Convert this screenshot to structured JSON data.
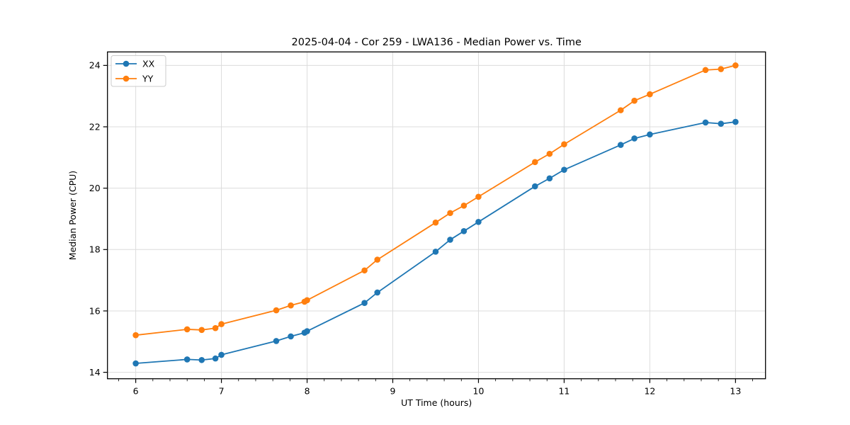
{
  "figure": {
    "background": "#ffffff",
    "title": "2025-04-04 - Cor 259 - LWA136 - Median Power vs. Time"
  },
  "chart_data": {
    "type": "line",
    "title": "2025-04-04 - Cor 259 - LWA136 - Median Power vs. Time",
    "xlabel": "UT Time (hours)",
    "ylabel": "Median Power (CPU)",
    "x": [
      6.0,
      6.6,
      6.77,
      6.93,
      7.0,
      7.64,
      7.81,
      7.97,
      8.0,
      8.67,
      8.82,
      9.5,
      9.67,
      9.83,
      10.0,
      10.66,
      10.83,
      11.0,
      11.66,
      11.82,
      12.0,
      12.65,
      12.83,
      13.0
    ],
    "series": [
      {
        "name": "XX",
        "color": "#1f77b4",
        "values": [
          14.29,
          14.42,
          14.4,
          14.45,
          14.57,
          15.02,
          15.17,
          15.29,
          15.34,
          16.26,
          16.6,
          17.93,
          18.32,
          18.6,
          18.9,
          20.06,
          20.32,
          20.6,
          21.41,
          21.62,
          21.75,
          22.14,
          22.1,
          22.16
        ]
      },
      {
        "name": "YY",
        "color": "#ff7f0e",
        "values": [
          15.21,
          15.4,
          15.38,
          15.44,
          15.57,
          16.02,
          16.18,
          16.3,
          16.35,
          17.32,
          17.67,
          18.88,
          19.19,
          19.43,
          19.72,
          20.85,
          21.12,
          21.43,
          22.54,
          22.85,
          23.06,
          23.85,
          23.88,
          24.0
        ]
      }
    ],
    "xticks": [
      6,
      7,
      8,
      9,
      10,
      11,
      12,
      13
    ],
    "yticks": [
      14,
      16,
      18,
      20,
      22,
      24
    ],
    "xlim": [
      5.67,
      13.35
    ],
    "ylim": [
      13.79,
      24.44
    ],
    "x_minor_step": 0.2,
    "grid": "major",
    "grid_color": "#dcdcdc",
    "spine_color": "#000000",
    "legend": {
      "position": "upper-left",
      "entries": [
        "XX",
        "YY"
      ],
      "border_color": "#cccccc",
      "background": "#ffffff"
    }
  }
}
